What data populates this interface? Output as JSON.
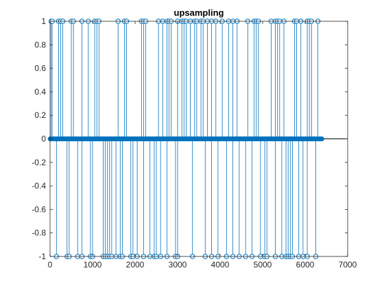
{
  "chart_data": {
    "type": "stem",
    "title": "upsampling",
    "xlabel": "",
    "ylabel": "",
    "xlim": [
      0,
      7000
    ],
    "ylim": [
      -1,
      1
    ],
    "xticks": [
      0,
      1000,
      2000,
      3000,
      4000,
      5000,
      6000,
      7000
    ],
    "xtick_labels": [
      "0",
      "1000",
      "2000",
      "3000",
      "4000",
      "5000",
      "6000",
      "7000"
    ],
    "yticks": [
      -1,
      -0.8,
      -0.6,
      -0.4,
      -0.2,
      0,
      0.2,
      0.4,
      0.6,
      0.8,
      1
    ],
    "ytick_labels": [
      "-1",
      "-0.8",
      "-0.6",
      "-0.4",
      "-0.2",
      "0",
      "0.2",
      "0.4",
      "0.6",
      "0.8",
      "1"
    ],
    "grid": false,
    "color": "#0072BD",
    "baseline": 0,
    "zero_samples_range": [
      0,
      6400
    ],
    "points_y1": [
      25,
      50,
      200,
      250,
      300,
      500,
      550,
      750,
      900,
      1050,
      1100,
      1150,
      1600,
      1750,
      1800,
      2150,
      2200,
      2250,
      2550,
      2650,
      2750,
      2800,
      2850,
      3000,
      3100,
      3150,
      3200,
      3300,
      3400,
      3450,
      3550,
      3600,
      3700,
      3800,
      3900,
      4050,
      4200,
      4300,
      4400,
      4650,
      4800,
      4850,
      4900,
      5200,
      5300,
      5350,
      5400,
      5500,
      5750,
      5800,
      5900,
      6050,
      6100,
      6150,
      6300
    ],
    "points_yneg1": [
      150,
      400,
      450,
      650,
      750,
      950,
      1000,
      1250,
      1300,
      1350,
      1400,
      1450,
      1550,
      1650,
      1700,
      1900,
      1950,
      2050,
      2200,
      2350,
      2450,
      2500,
      2600,
      2750,
      2950,
      3000,
      3350,
      3650,
      3800,
      3950,
      4150,
      4300,
      4450,
      4600,
      4750,
      4950,
      5050,
      5100,
      5300,
      5450,
      5550,
      5600,
      5650,
      5700,
      5850,
      5950,
      6050,
      6250
    ]
  }
}
